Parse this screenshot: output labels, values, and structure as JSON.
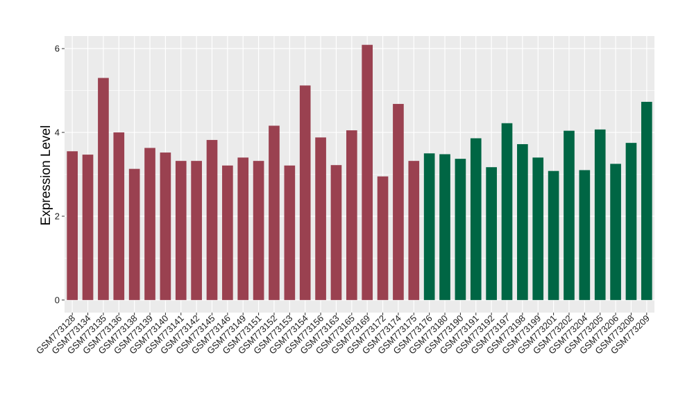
{
  "chart_data": {
    "type": "bar",
    "title": "",
    "xlabel": "",
    "ylabel": "Expression Level",
    "ylim": [
      -0.3,
      6.3
    ],
    "yticks": [
      0,
      2,
      4,
      6
    ],
    "grid": true,
    "legend": "none",
    "categories": [
      "GSM773128",
      "GSM773134",
      "GSM773135",
      "GSM773136",
      "GSM773138",
      "GSM773139",
      "GSM773140",
      "GSM773141",
      "GSM773142",
      "GSM773145",
      "GSM773146",
      "GSM773149",
      "GSM773151",
      "GSM773152",
      "GSM773153",
      "GSM773154",
      "GSM773156",
      "GSM773163",
      "GSM773165",
      "GSM773169",
      "GSM773172",
      "GSM773174",
      "GSM773175",
      "GSM773176",
      "GSM773180",
      "GSM773190",
      "GSM773191",
      "GSM773192",
      "GSM773197",
      "GSM773198",
      "GSM773199",
      "GSM773201",
      "GSM773202",
      "GSM773204",
      "GSM773205",
      "GSM773206",
      "GSM773208",
      "GSM773209"
    ],
    "values": [
      3.55,
      3.47,
      5.3,
      4.0,
      3.13,
      3.63,
      3.52,
      3.32,
      3.32,
      3.82,
      3.21,
      3.4,
      3.32,
      4.16,
      3.21,
      5.12,
      3.88,
      3.22,
      4.05,
      6.09,
      2.95,
      4.68,
      3.32,
      3.5,
      3.48,
      3.37,
      3.86,
      3.17,
      4.22,
      3.72,
      3.4,
      3.08,
      4.04,
      3.1,
      4.07,
      3.25,
      3.75,
      4.73
    ],
    "groups": [
      0,
      0,
      0,
      0,
      0,
      0,
      0,
      0,
      0,
      0,
      0,
      0,
      0,
      0,
      0,
      0,
      0,
      0,
      0,
      0,
      0,
      0,
      0,
      1,
      1,
      1,
      1,
      1,
      1,
      1,
      1,
      1,
      1,
      1,
      1,
      1,
      1,
      1
    ],
    "group_colors": [
      "#9a4150",
      "#006644"
    ],
    "background_color": "#ebebeb",
    "grid_color": "#ffffff"
  }
}
